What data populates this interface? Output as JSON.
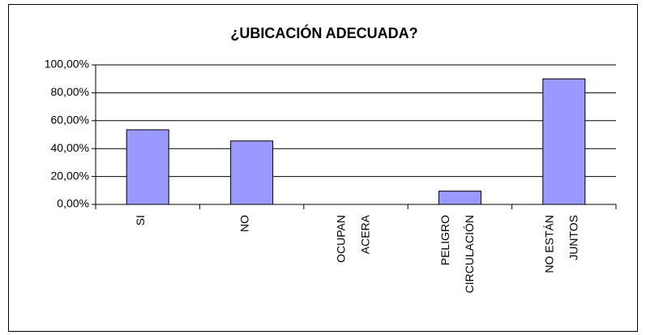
{
  "chart_data": {
    "type": "bar",
    "title": "¿UBICACIÓN ADECUADA?",
    "categories": [
      [
        "SI"
      ],
      [
        "NO"
      ],
      [
        "OCUPAN",
        "ACERA"
      ],
      [
        "PELIGRO",
        "CIRCULACIÓN"
      ],
      [
        "NO ESTÁN",
        "JUNTOS"
      ]
    ],
    "values": [
      53.5,
      45.5,
      0,
      9.5,
      90
    ],
    "color": "#9999ff",
    "ylim": [
      0,
      100
    ],
    "yticks": [
      {
        "value": 0,
        "label": "0,00%"
      },
      {
        "value": 20,
        "label": "20,00%"
      },
      {
        "value": 40,
        "label": "40,00%"
      },
      {
        "value": 60,
        "label": "60,00%"
      },
      {
        "value": 80,
        "label": "80,00%"
      },
      {
        "value": 100,
        "label": "100,00%"
      }
    ],
    "grid": true
  }
}
